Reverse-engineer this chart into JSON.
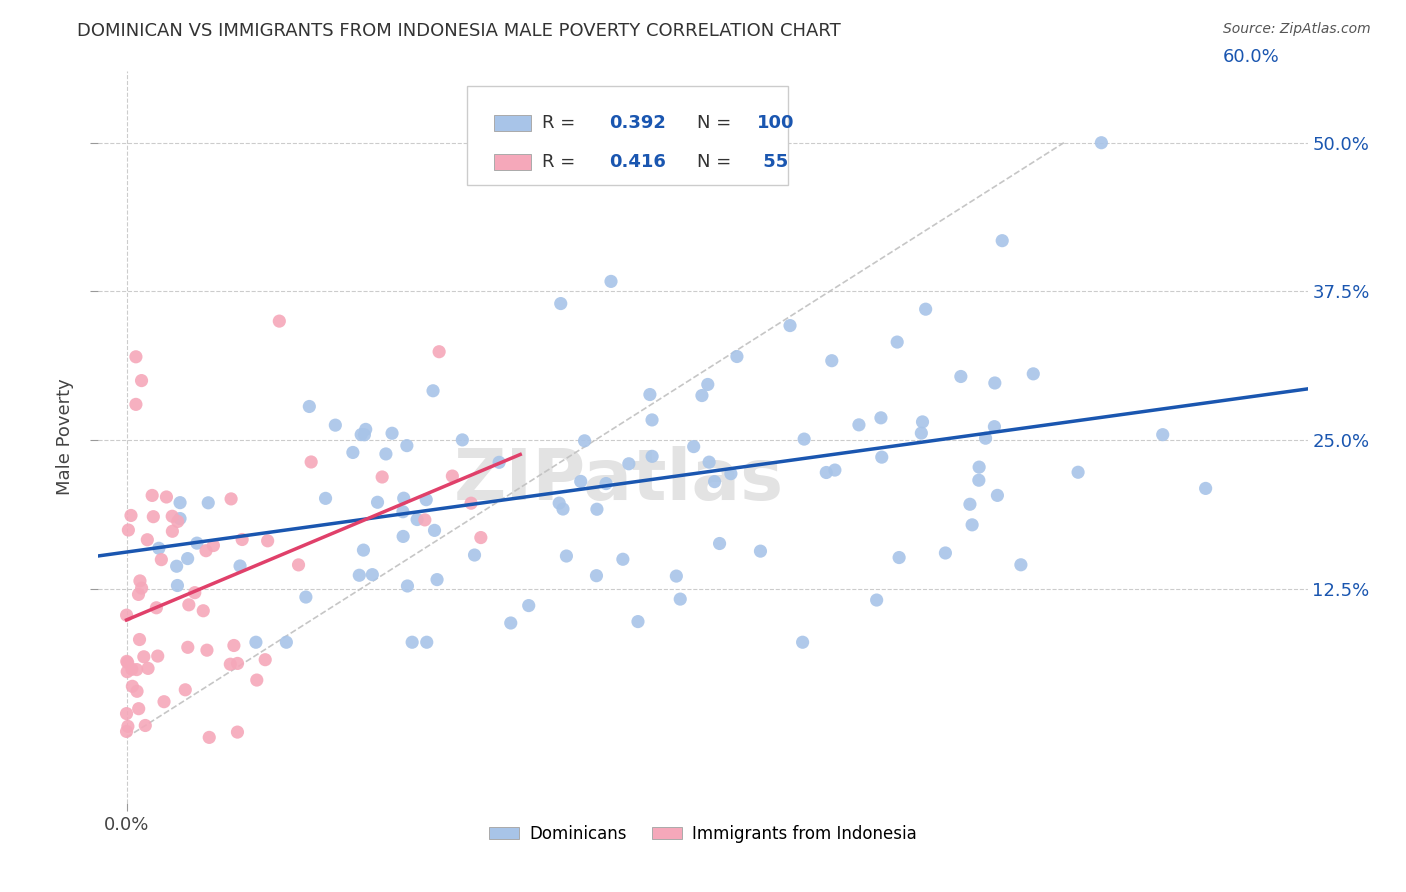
{
  "title": "DOMINICAN VS IMMIGRANTS FROM INDONESIA MALE POVERTY CORRELATION CHART",
  "source": "Source: ZipAtlas.com",
  "ylabel": "Male Poverty",
  "xlim": [
    -0.015,
    0.63
  ],
  "ylim": [
    -0.055,
    0.56
  ],
  "ytick_vals": [
    0.125,
    0.25,
    0.375,
    0.5
  ],
  "ytick_labels": [
    "12.5%",
    "25.0%",
    "37.5%",
    "50.0%"
  ],
  "xtick_left_label": "0.0%",
  "xtick_right_label": "60.0%",
  "color_dominican": "#a8c4e8",
  "color_indonesia": "#f5a8ba",
  "color_line_dominican": "#1a56b0",
  "color_line_indonesia": "#e0406a",
  "color_diagonal": "#c0c0c0",
  "watermark": "ZIPatlas",
  "background_color": "#ffffff",
  "grid_color": "#cccccc",
  "legend_r1": "0.392",
  "legend_n1": "100",
  "legend_r2": "0.416",
  "legend_n2": " 55",
  "dom_seed": 7,
  "ind_seed": 13
}
